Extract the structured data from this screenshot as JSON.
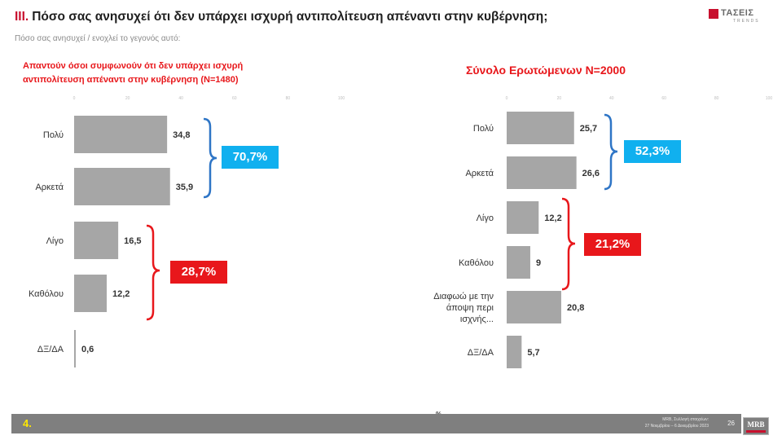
{
  "header": {
    "roman": "ΙΙΙ.",
    "title": "Πόσο σας ανησυχεί ότι δεν υπάρχει ισχυρή αντιπολίτευση απέναντι στην κυβέρνηση;",
    "subtitle": "Πόσο σας ανησυχεί / ενοχλεί το γεγονός αυτό:"
  },
  "logo": {
    "name": "ΤΑΣΕΙΣ",
    "sub": "TRENDS"
  },
  "left_panel": {
    "heading_line1": "Απαντούν όσοι συμφωνούν ότι δεν υπάρχει ισχυρή",
    "heading_line2": "αντιπολίτευση απέναντι στην κυβέρνηση (N=1480)",
    "badges": {
      "top": "70,7%",
      "bottom": "28,7%"
    }
  },
  "right_panel": {
    "heading": "Σύνολο Ερωτώμενων Ν=2000",
    "badges": {
      "top": "52,3%",
      "bottom": "21,2%"
    }
  },
  "colors": {
    "bar": "#a6a6a6",
    "blue": "#2e75c6",
    "cyan": "#10b0ef",
    "red": "#e8171b"
  },
  "chart_data": [
    {
      "type": "bar",
      "orientation": "horizontal",
      "categories": [
        "Πολύ",
        "Αρκετά",
        "Λίγο",
        "Καθόλου",
        "ΔΞ/ΔΑ"
      ],
      "values": [
        34.8,
        35.9,
        16.5,
        12.2,
        0.6
      ],
      "value_labels": [
        "34,8",
        "35,9",
        "16,5",
        "12,2",
        "0,6"
      ],
      "xlim": [
        0,
        100
      ],
      "ticks": [
        "0",
        "20",
        "40",
        "60",
        "80",
        "100"
      ],
      "xlabel": "",
      "ylabel": "",
      "grid": false
    },
    {
      "type": "bar",
      "orientation": "horizontal",
      "categories": [
        "Πολύ",
        "Αρκετά",
        "Λίγο",
        "Καθόλου",
        "Διαφωώ με την|άποψη περι|ισχνής...",
        "ΔΞ/ΔΑ"
      ],
      "values": [
        25.7,
        26.6,
        12.2,
        9,
        20.8,
        5.7
      ],
      "value_labels": [
        "25,7",
        "26,6",
        "12,2",
        "9",
        "20,8",
        "5,7"
      ],
      "xlim": [
        0,
        100
      ],
      "ticks": [
        "0",
        "20",
        "40",
        "60",
        "80",
        "100"
      ],
      "xlabel": "",
      "ylabel": "",
      "grid": false
    }
  ],
  "footer": {
    "number": "4.",
    "source_line1": "MRB, Συλλογή στοιχείων:",
    "source_line2": "27 Νοεμβρίου – 6 Δεκεμβρίου 2023",
    "page": "26",
    "brand": "MRB",
    "percent_mark": "%"
  }
}
